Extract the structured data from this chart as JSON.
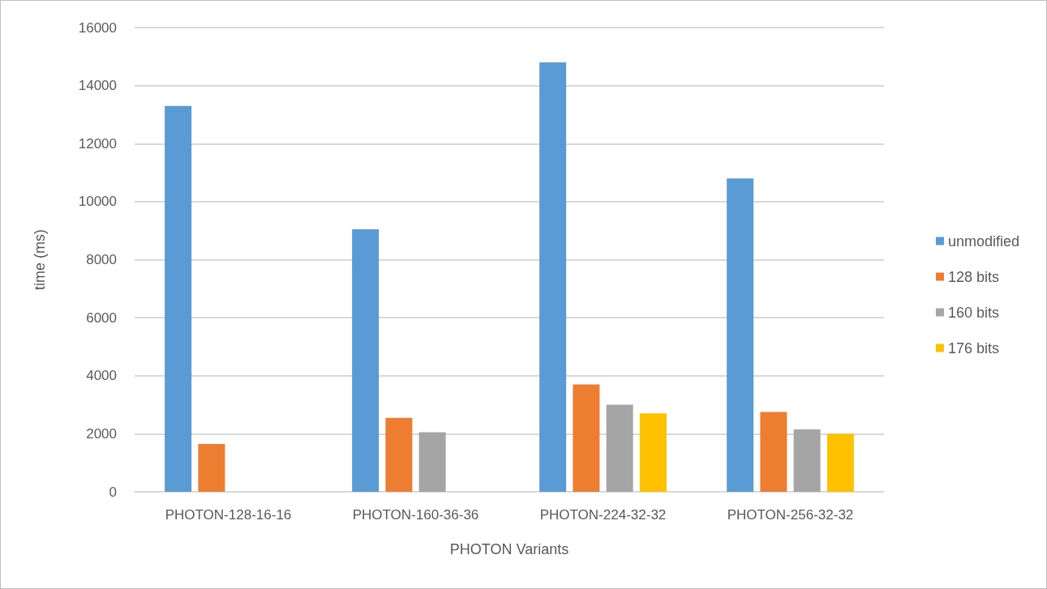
{
  "chart_data": {
    "type": "bar",
    "xlabel": "PHOTON Variants",
    "ylabel": "time (ms)",
    "categories": [
      "PHOTON-128-16-16",
      "PHOTON-160-36-36",
      "PHOTON-224-32-32",
      "PHOTON-256-32-32"
    ],
    "series": [
      {
        "name": "unmodified",
        "color": "#5b9bd5",
        "values": [
          13300,
          9050,
          14800,
          10800
        ]
      },
      {
        "name": "128 bits",
        "color": "#ed7d31",
        "values": [
          1650,
          2550,
          3700,
          2750
        ]
      },
      {
        "name": "160 bits",
        "color": "#a5a5a5",
        "values": [
          null,
          2050,
          3000,
          2150
        ]
      },
      {
        "name": "176 bits",
        "color": "#ffc000",
        "values": [
          null,
          null,
          2700,
          2000
        ]
      }
    ],
    "ylim": [
      0,
      16000
    ],
    "yticks": [
      0,
      2000,
      4000,
      6000,
      8000,
      10000,
      12000,
      14000,
      16000
    ],
    "grid": "y",
    "legend": "right"
  }
}
